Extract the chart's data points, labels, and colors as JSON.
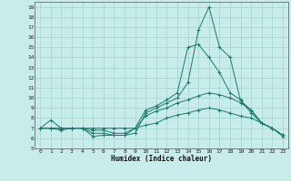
{
  "xlabel": "Humidex (Indice chaleur)",
  "xlim": [
    -0.5,
    23.5
  ],
  "ylim": [
    5,
    19.5
  ],
  "yticks": [
    5,
    6,
    7,
    8,
    9,
    10,
    11,
    12,
    13,
    14,
    15,
    16,
    17,
    18,
    19
  ],
  "xticks": [
    0,
    1,
    2,
    3,
    4,
    5,
    6,
    7,
    8,
    9,
    10,
    11,
    12,
    13,
    14,
    15,
    16,
    17,
    18,
    19,
    20,
    21,
    22,
    23
  ],
  "bg_color": "#c8ecea",
  "grid_color": "#a0d4d0",
  "line_color": "#1a7a6e",
  "lines": [
    {
      "x": [
        0,
        1,
        2,
        3,
        4,
        5,
        6,
        7,
        8,
        9,
        10,
        11,
        12,
        13,
        14,
        15,
        16,
        17,
        18,
        19,
        20,
        21,
        22,
        23
      ],
      "y": [
        7,
        7.8,
        7,
        7,
        7,
        6.2,
        6.3,
        6.3,
        6.3,
        6.5,
        8.5,
        9.0,
        9.5,
        10.0,
        11.5,
        16.7,
        19.0,
        15.0,
        14.0,
        9.7,
        8.8,
        7.5,
        7.0,
        6.2
      ]
    },
    {
      "x": [
        0,
        1,
        2,
        3,
        4,
        5,
        6,
        7,
        8,
        9,
        10,
        11,
        12,
        13,
        14,
        15,
        16,
        17,
        18,
        19,
        20,
        21,
        22,
        23
      ],
      "y": [
        7,
        7.0,
        6.8,
        7,
        7,
        6.5,
        6.5,
        6.3,
        6.3,
        7.0,
        8.8,
        9.2,
        9.8,
        10.5,
        15.0,
        15.3,
        14.0,
        12.5,
        10.5,
        9.8,
        8.5,
        7.5,
        7.0,
        6.3
      ]
    },
    {
      "x": [
        0,
        1,
        2,
        3,
        4,
        5,
        6,
        7,
        8,
        9,
        10,
        11,
        12,
        13,
        14,
        15,
        16,
        17,
        18,
        19,
        20,
        21,
        22,
        23
      ],
      "y": [
        7,
        7.0,
        7.0,
        7,
        7,
        6.8,
        6.8,
        6.5,
        6.5,
        7.0,
        8.2,
        8.7,
        9.0,
        9.5,
        9.8,
        10.2,
        10.5,
        10.3,
        10.0,
        9.5,
        8.8,
        7.5,
        7.0,
        6.3
      ]
    },
    {
      "x": [
        0,
        1,
        2,
        3,
        4,
        5,
        6,
        7,
        8,
        9,
        10,
        11,
        12,
        13,
        14,
        15,
        16,
        17,
        18,
        19,
        20,
        21,
        22,
        23
      ],
      "y": [
        7,
        7.0,
        7.0,
        7,
        7,
        7.0,
        7.0,
        7.0,
        7.0,
        7.0,
        7.3,
        7.5,
        8.0,
        8.3,
        8.5,
        8.8,
        9.0,
        8.8,
        8.5,
        8.2,
        8.0,
        7.5,
        7.0,
        6.3
      ]
    }
  ]
}
